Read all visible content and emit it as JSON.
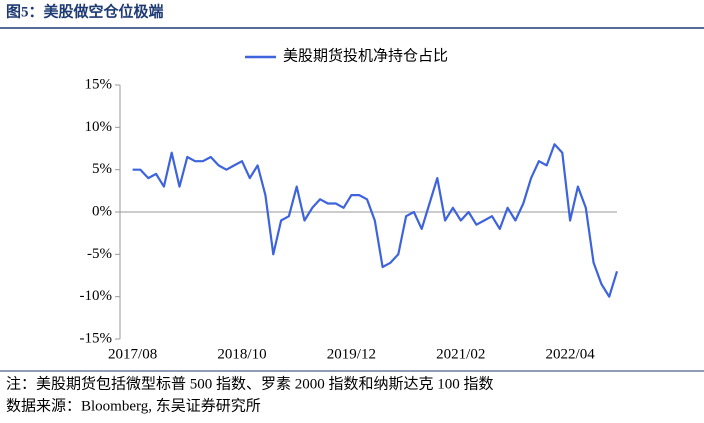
{
  "chart_data": {
    "type": "line",
    "title": "图5：美股做空仓位极端",
    "notes": [
      "注：美股期货包括微型标普 500 指数、罗素 2000 指数和纳斯达克 100 指数",
      "数据来源：Bloomberg, 东吴证券研究所"
    ],
    "x": [
      "2017/08",
      "2017/09",
      "2017/10",
      "2017/11",
      "2017/12",
      "2018/01",
      "2018/02",
      "2018/03",
      "2018/04",
      "2018/05",
      "2018/06",
      "2018/07",
      "2018/08",
      "2018/09",
      "2018/10",
      "2018/11",
      "2018/12",
      "2019/01",
      "2019/02",
      "2019/03",
      "2019/04",
      "2019/05",
      "2019/06",
      "2019/07",
      "2019/08",
      "2019/09",
      "2019/10",
      "2019/11",
      "2019/12",
      "2020/01",
      "2020/02",
      "2020/03",
      "2020/04",
      "2020/05",
      "2020/06",
      "2020/07",
      "2020/08",
      "2020/09",
      "2020/10",
      "2020/11",
      "2020/12",
      "2021/01",
      "2021/02",
      "2021/03",
      "2021/04",
      "2021/05",
      "2021/06",
      "2021/07",
      "2021/08",
      "2021/09",
      "2021/10",
      "2021/11",
      "2021/12",
      "2022/01",
      "2022/02",
      "2022/03",
      "2022/04",
      "2022/05",
      "2022/06",
      "2022/07",
      "2022/08",
      "2022/09",
      "2022/10"
    ],
    "series": [
      {
        "name": "美股期货投机净持仓占比",
        "color": "#3d63dd",
        "values": [
          5,
          5,
          4,
          4.5,
          3,
          7,
          3,
          6.5,
          6,
          6,
          6.5,
          5.5,
          5,
          5.5,
          6,
          4,
          5.5,
          2,
          -5,
          -1,
          -0.5,
          3,
          -1,
          0.5,
          1.5,
          1,
          1,
          0.5,
          2,
          2,
          1.5,
          -1,
          -6.5,
          -6,
          -5,
          -0.5,
          0,
          -2,
          1,
          4,
          -1,
          0.5,
          -1,
          0,
          -1.5,
          -1,
          -0.5,
          -2,
          0.5,
          -1,
          1,
          4,
          6,
          5.5,
          8,
          7,
          -1,
          3,
          0.5,
          -6,
          -8.5,
          -10,
          -7
        ]
      }
    ],
    "xlim": [
      "2017/06",
      "2022/10"
    ],
    "xticks": [
      "2017/08",
      "2018/10",
      "2019/12",
      "2021/02",
      "2022/04"
    ],
    "ylim": [
      -15,
      15
    ],
    "yticks": [
      {
        "value": -15,
        "label": "-15%"
      },
      {
        "value": -10,
        "label": "-10%"
      },
      {
        "value": -5,
        "label": "-5%"
      },
      {
        "value": 0,
        "label": "0%"
      },
      {
        "value": 5,
        "label": "5%"
      },
      {
        "value": 10,
        "label": "10%"
      },
      {
        "value": 15,
        "label": "15%"
      }
    ],
    "zero_line": true
  }
}
